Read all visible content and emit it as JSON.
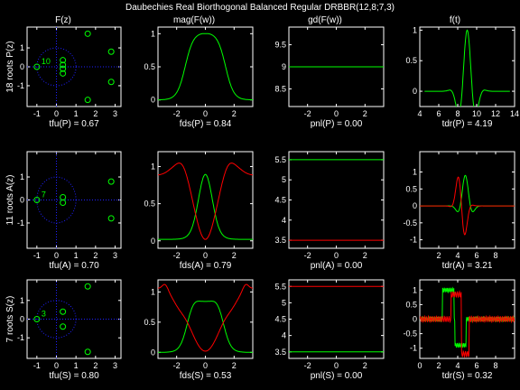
{
  "title": "Daubechies Real Biorthogonal Balanced Regular DRBBR(12,8;7,3)",
  "colors": {
    "green": "#00ff00",
    "red": "#ff0000",
    "blue_dotted": "#2020ff",
    "axes": "#ffffff",
    "background": "#000000"
  },
  "column_titles": [
    "F(z)",
    "mag(F(w))",
    "gd(F(w))",
    "f(t)"
  ],
  "row_labels": [
    "18 roots P(z)",
    "11 roots A(z)",
    "7 roots S(z)"
  ],
  "chart_data": [
    {
      "id": "roots-P",
      "type": "scatter",
      "title": "F(z)",
      "ylabel": "18 roots P(z)",
      "xlabel": "tfu(P) = 0.67",
      "xlim": [
        -1.5,
        3.3
      ],
      "ylim": [
        -2.1,
        2.1
      ],
      "xticks": [
        -1,
        0,
        1,
        2,
        3
      ],
      "yticks": [
        -1,
        0,
        1
      ],
      "unit_circle": true,
      "multiplicity": {
        "label": "10",
        "at": [
          -1,
          0
        ]
      },
      "series": [
        {
          "color": "#00ff00",
          "points": [
            [
              -1,
              0
            ],
            [
              0.33,
              0.35
            ],
            [
              0.33,
              -0.35
            ],
            [
              0.33,
              0.1
            ],
            [
              0.33,
              -0.1
            ],
            [
              1.6,
              1.75
            ],
            [
              1.6,
              -1.75
            ],
            [
              2.8,
              0.8
            ],
            [
              2.8,
              -0.8
            ]
          ]
        }
      ]
    },
    {
      "id": "mag-P",
      "type": "line",
      "title": "mag(F(w))",
      "xlabel": "fds(P) = 0.84",
      "xlim": [
        -3.3,
        3.3
      ],
      "ylim": [
        -0.1,
        1.1
      ],
      "xticks": [
        -2,
        0,
        2
      ],
      "yticks": [
        0,
        0.5,
        1
      ],
      "series": [
        {
          "color": "#00ff00",
          "func": "magP"
        }
      ]
    },
    {
      "id": "gd-P",
      "type": "line",
      "title": "gd(F(w))",
      "xlabel": "pnl(P) = 0.00",
      "xlim": [
        -3.3,
        3.3
      ],
      "ylim": [
        8.1,
        9.9
      ],
      "xticks": [
        -2,
        0,
        2
      ],
      "yticks": [
        8.5,
        9,
        9.5
      ],
      "series": [
        {
          "color": "#00ff00",
          "func": "const:9"
        }
      ]
    },
    {
      "id": "ft-P",
      "type": "line",
      "title": "f(t)",
      "xlabel": "tdr(P) = 4.19",
      "xlim": [
        4,
        14
      ],
      "ylim": [
        -0.25,
        1.05
      ],
      "xticks": [
        4,
        6,
        8,
        10,
        12,
        14
      ],
      "yticks": [
        0,
        0.5,
        1
      ],
      "series": [
        {
          "color": "#00ff00",
          "func": "ftP"
        }
      ]
    },
    {
      "id": "roots-A",
      "type": "scatter",
      "ylabel": "11 roots A(z)",
      "xlabel": "tfu(A) = 0.70",
      "xlim": [
        -1.5,
        3.3
      ],
      "ylim": [
        -2.1,
        2.1
      ],
      "xticks": [
        -1,
        0,
        1,
        2,
        3
      ],
      "yticks": [
        -1,
        0,
        1
      ],
      "unit_circle": true,
      "multiplicity": {
        "label": "7",
        "at": [
          -1,
          0
        ]
      },
      "series": [
        {
          "color": "#00ff00",
          "points": [
            [
              -1,
              0
            ],
            [
              0.33,
              0.12
            ],
            [
              0.33,
              -0.12
            ],
            [
              2.8,
              0.8
            ],
            [
              2.8,
              -0.8
            ]
          ]
        }
      ]
    },
    {
      "id": "mag-A",
      "type": "line",
      "xlabel": "fds(A) = 0.79",
      "xlim": [
        -3.3,
        3.3
      ],
      "ylim": [
        -0.1,
        1.2
      ],
      "xticks": [
        -2,
        0,
        2
      ],
      "yticks": [
        0,
        0.5,
        1
      ],
      "series": [
        {
          "color": "#00ff00",
          "func": "magA_g"
        },
        {
          "color": "#ff0000",
          "func": "magA_r"
        }
      ]
    },
    {
      "id": "gd-A",
      "type": "line",
      "xlabel": "pnl(A) = 0.00",
      "xlim": [
        -3.3,
        3.3
      ],
      "ylim": [
        3.3,
        5.7
      ],
      "xticks": [
        -2,
        0,
        2
      ],
      "yticks": [
        3.5,
        4,
        4.5,
        5,
        5.5
      ],
      "series": [
        {
          "color": "#00ff00",
          "func": "const:5.5"
        },
        {
          "color": "#ff0000",
          "func": "const:3.5"
        }
      ]
    },
    {
      "id": "ft-A",
      "type": "line",
      "xlabel": "tdr(A) = 3.21",
      "xlim": [
        0,
        10
      ],
      "ylim": [
        -1.25,
        1.6
      ],
      "xticks": [
        2,
        4,
        6,
        8
      ],
      "yticks": [
        -1,
        -0.5,
        0,
        0.5,
        1
      ],
      "series": [
        {
          "color": "#00ff00",
          "func": "ftA_g"
        },
        {
          "color": "#ff0000",
          "func": "ftA_r"
        }
      ]
    },
    {
      "id": "roots-S",
      "type": "scatter",
      "ylabel": "7 roots S(z)",
      "xlabel": "tfu(S) = 0.80",
      "xlim": [
        -1.5,
        3.3
      ],
      "ylim": [
        -2.1,
        2.1
      ],
      "xticks": [
        -1,
        0,
        1,
        2,
        3
      ],
      "yticks": [
        -1,
        0,
        1
      ],
      "unit_circle": true,
      "multiplicity": {
        "label": "3",
        "at": [
          -1,
          0
        ]
      },
      "series": [
        {
          "color": "#00ff00",
          "points": [
            [
              -1,
              0
            ],
            [
              0.33,
              0.4
            ],
            [
              0.33,
              -0.4
            ],
            [
              1.6,
              1.75
            ],
            [
              1.6,
              -1.75
            ]
          ]
        }
      ]
    },
    {
      "id": "mag-S",
      "type": "line",
      "xlabel": "fds(S) = 0.53",
      "xlim": [
        -3.3,
        3.3
      ],
      "ylim": [
        -0.1,
        1.2
      ],
      "xticks": [
        -2,
        0,
        2
      ],
      "yticks": [
        0,
        0.5,
        1
      ],
      "series": [
        {
          "color": "#00ff00",
          "func": "magS_g"
        },
        {
          "color": "#ff0000",
          "func": "magS_r"
        }
      ]
    },
    {
      "id": "gd-S",
      "type": "line",
      "xlabel": "pnl(S) = 0.00",
      "xlim": [
        -3.3,
        3.3
      ],
      "ylim": [
        3.3,
        5.7
      ],
      "xticks": [
        -2,
        0,
        2
      ],
      "yticks": [
        3.5,
        4,
        4.5,
        5,
        5.5
      ],
      "series": [
        {
          "color": "#00ff00",
          "func": "const:3.5"
        },
        {
          "color": "#ff0000",
          "func": "const:5.5"
        }
      ]
    },
    {
      "id": "ft-S",
      "type": "line",
      "xlabel": "tdr(S) = 0.32",
      "xlim": [
        0,
        10
      ],
      "ylim": [
        -1.35,
        1.35
      ],
      "xticks": [
        0,
        2,
        4,
        6,
        8
      ],
      "yticks": [
        -1,
        -0.5,
        0,
        0.5,
        1
      ],
      "series": [
        {
          "color": "#00ff00",
          "func": "ftS_g"
        },
        {
          "color": "#ff0000",
          "func": "ftS_r"
        }
      ]
    }
  ]
}
